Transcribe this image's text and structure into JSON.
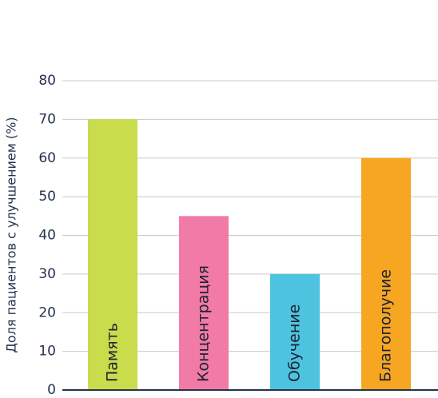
{
  "chart_data": {
    "type": "bar",
    "y_label": "Доля пациентов с улучшением (%)",
    "categories": [
      "Память",
      "Концентрация",
      "Обучение",
      "Благополучие"
    ],
    "values": [
      70,
      45,
      30,
      60
    ],
    "colors": [
      "#c8dc4c",
      "#f17aa7",
      "#4ec3df",
      "#f6a621"
    ],
    "ylim": [
      0,
      80
    ],
    "yticks": [
      0,
      10,
      20,
      30,
      40,
      50,
      60,
      70,
      80
    ],
    "grid": true
  }
}
